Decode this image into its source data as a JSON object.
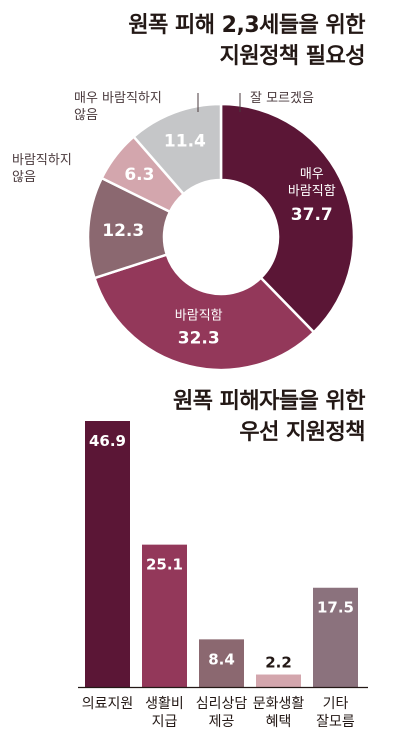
{
  "chart_data": [
    {
      "type": "pie",
      "title_lines": [
        "원폭 피해 2,3세들을 위한",
        "지원정책 필요성"
      ],
      "slices": [
        {
          "label": "매우\n바람직함",
          "value": 37.7,
          "color": "#5b1636"
        },
        {
          "label": "바람직함",
          "value": 32.3,
          "color": "#93385a"
        },
        {
          "label": "바람직하지\n않음",
          "value": 12.3,
          "color": "#8b6870"
        },
        {
          "label": "매우 바람직하지\n않음",
          "value": 6.3,
          "color": "#d3a6ad"
        },
        {
          "label": "잘 모르겠음",
          "value": 11.4,
          "color": "#c5c6c8"
        }
      ]
    },
    {
      "type": "bar",
      "title_lines": [
        "원폭 피해자들을 위한",
        "우선 지원정책"
      ],
      "categories": [
        "의료지원",
        "생활비\n지급",
        "심리상담\n제공",
        "문화생활\n혜택",
        "기타\n잘모름"
      ],
      "values": [
        46.9,
        25.1,
        8.4,
        2.2,
        17.5
      ],
      "colors": [
        "#5b1636",
        "#93385a",
        "#8b6870",
        "#d3a6ad",
        "#8b727d"
      ]
    }
  ]
}
